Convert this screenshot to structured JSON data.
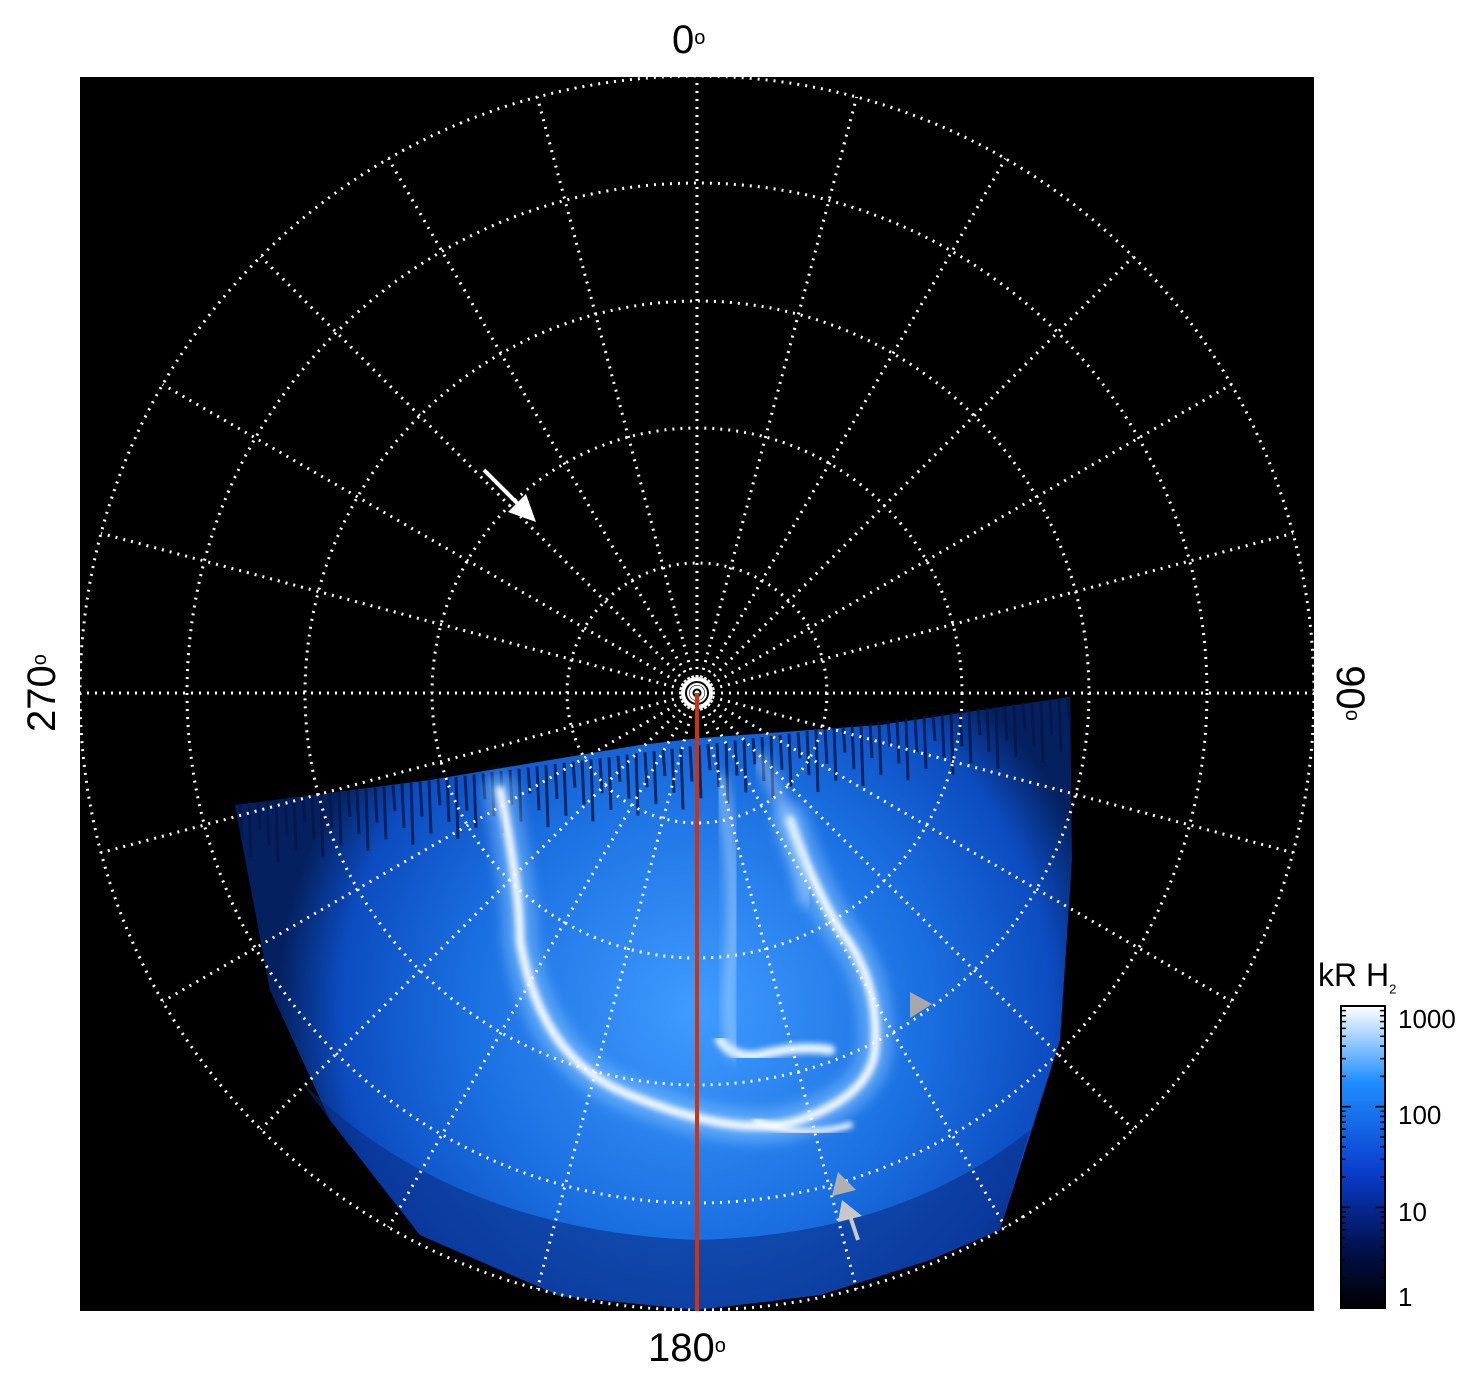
{
  "labels": {
    "top": "0",
    "right": "90",
    "bottom": "180",
    "left": "270",
    "degree_symbol": "o"
  },
  "colorbar": {
    "title_main": "kR H",
    "title_sub": "2",
    "ticks": [
      "1000",
      "100",
      "10",
      "1"
    ],
    "colors": [
      "#ffffff",
      "#1f8fff",
      "#0a3dcc",
      "#00114d",
      "#000000"
    ]
  },
  "colors": {
    "background": "#000000",
    "grid": "#ffffff",
    "meridian_line": "#cc3311",
    "arrow_white": "#ffffff",
    "arrow_grey": "#a8a8a8",
    "aurora_bright": "#e8f4ff",
    "aurora_mid": "#1f7fe6"
  }
}
